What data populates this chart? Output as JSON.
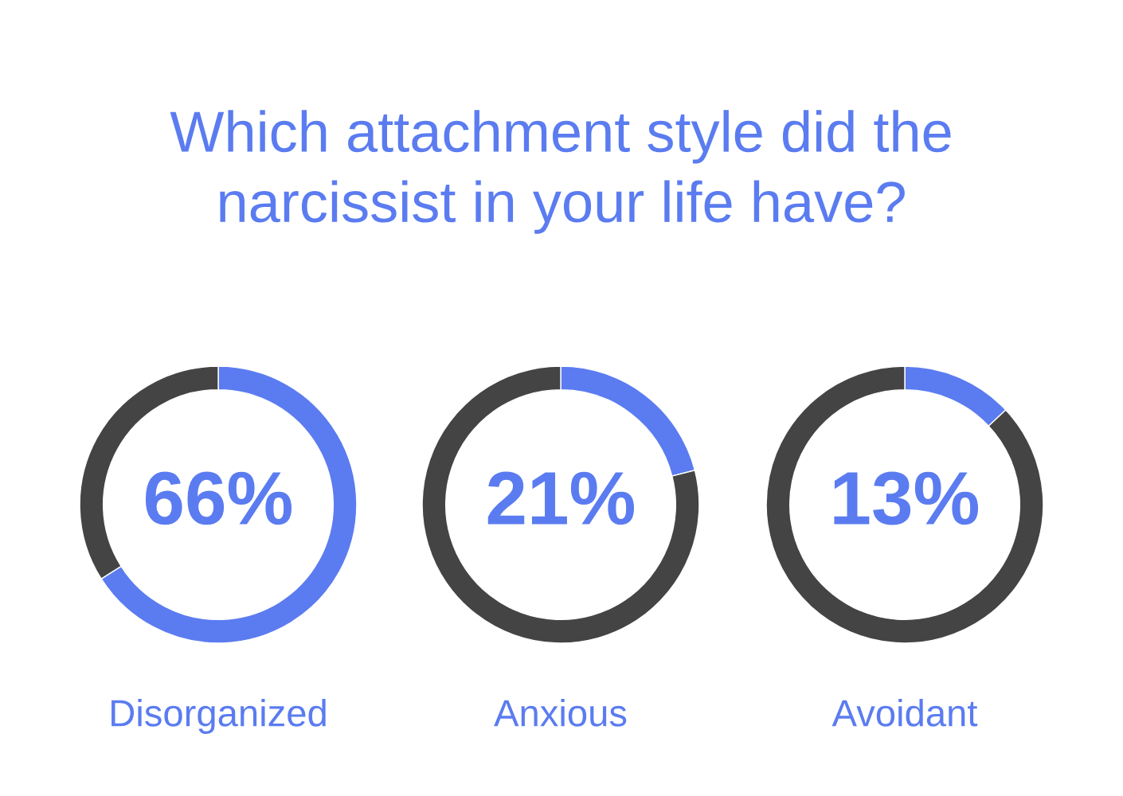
{
  "chart_data": [
    {
      "type": "donut",
      "title": "Which attachment style did the\nnarcissist in your life have?",
      "xlabel": "Disorganized",
      "categories": [
        null,
        null
      ],
      "values": [
        66,
        34
      ],
      "colors": [
        "#5b7cf0",
        "#444444"
      ],
      "value_labels": [
        "66%",
        null
      ],
      "legend": false
    },
    {
      "type": "donut",
      "xlabel": "Anxious",
      "categories": [
        null,
        null
      ],
      "values": [
        21,
        79
      ],
      "colors": [
        "#5b7cf0",
        "#444444"
      ],
      "value_labels": [
        "21%",
        null
      ],
      "legend": false
    },
    {
      "type": "donut",
      "xlabel": "Avoidant",
      "categories": [
        null,
        null
      ],
      "values": [
        13,
        87
      ],
      "colors": [
        "#5b7cf0",
        "#444444"
      ],
      "value_labels": [
        "13%",
        null
      ],
      "legend": false
    }
  ]
}
